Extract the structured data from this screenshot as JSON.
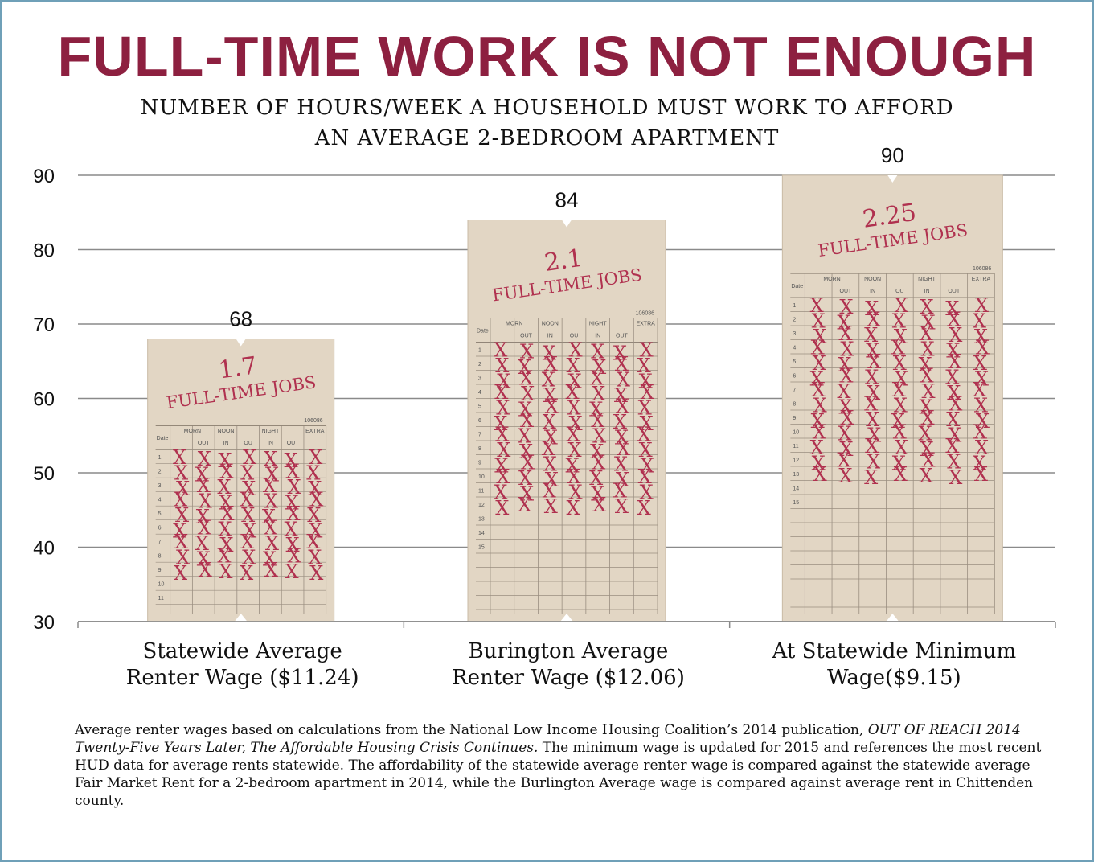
{
  "title": "FULL-TIME WORK IS NOT ENOUGH",
  "subtitle_lines": [
    "NUMBER OF HOURS/WEEK A HOUSEHOLD MUST WORK TO AFFORD",
    "AN AVERAGE 2-BEDROOM APARTMENT"
  ],
  "footnote": {
    "part1": "Average renter wages based on calculations from the National Low Income Housing Coalition’s 2014 publication, ",
    "italic": "OUT OF REACH 2014 Twenty-Five Years Later, The Affordable Housing Crisis Continues.",
    "part2": " The minimum wage is updated for 2015 and references the most recent HUD data for average rents statewide.  The affordability of the statewide average renter wage is compared against the statewide average Fair Market Rent for a 2-bedroom apartment in 2014, while the Burlington Average wage is compared against average rent in Chittenden county."
  },
  "colors": {
    "title": "#8d2040",
    "card": "#e2d6c4",
    "mark": "#b0314f",
    "gridline": "#8a8a8a",
    "frame": "#6fa0b8"
  },
  "card_text": {
    "jobs_suffix": "FULL-TIME JOBS",
    "columns": [
      "MORN",
      "NOON",
      "NIGHT",
      "EXTRA"
    ],
    "sub_columns": [
      "OUT",
      "IN",
      "OU",
      "IN",
      "OUT"
    ],
    "date_label": "Date",
    "serial": "106086"
  },
  "chart_data": {
    "type": "bar",
    "title": "FULL-TIME WORK IS NOT ENOUGH",
    "categories": [
      [
        "Statewide Average",
        "Renter Wage ($11.24)"
      ],
      [
        "Burington Average",
        "Renter Wage ($12.06)"
      ],
      [
        "At Statewide Minimum",
        "Wage($9.15)"
      ]
    ],
    "values": [
      68,
      84,
      90
    ],
    "full_time_jobs": [
      "1.7",
      "2.1",
      "2.25"
    ],
    "ylim": [
      30,
      90
    ],
    "yticks": [
      30,
      40,
      50,
      60,
      70,
      80,
      90
    ],
    "grid": true,
    "legend": "none"
  }
}
